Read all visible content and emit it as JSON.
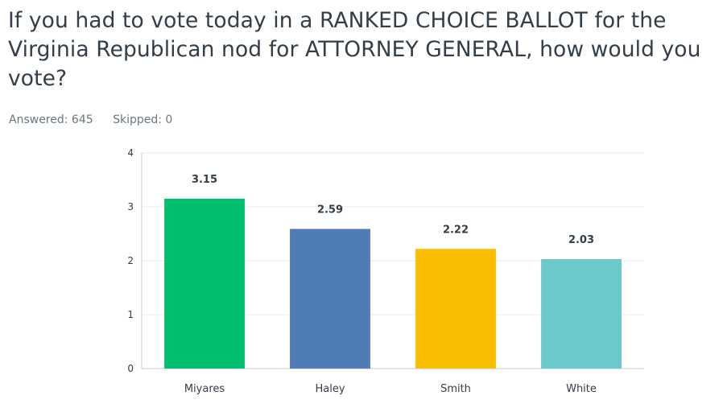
{
  "question": {
    "title": "If you had to vote today in a RANKED CHOICE BALLOT for the Virginia Republican nod for ATTORNEY GENERAL, how would you vote?"
  },
  "stats": {
    "answered_label": "Answered: 645",
    "skipped_label": "Skipped: 0"
  },
  "chart_data": {
    "type": "bar",
    "categories": [
      "Miyares",
      "Haley",
      "Smith",
      "White"
    ],
    "values": [
      3.15,
      2.59,
      2.22,
      2.03
    ],
    "value_labels": [
      "3.15",
      "2.59",
      "2.22",
      "2.03"
    ],
    "colors": [
      "#00bf6f",
      "#507cb6",
      "#f9be00",
      "#6bc8cd"
    ],
    "ylim": [
      0,
      4
    ],
    "yticks": [
      0,
      1,
      2,
      3,
      4
    ],
    "grid": true,
    "title": "",
    "xlabel": "",
    "ylabel": ""
  }
}
